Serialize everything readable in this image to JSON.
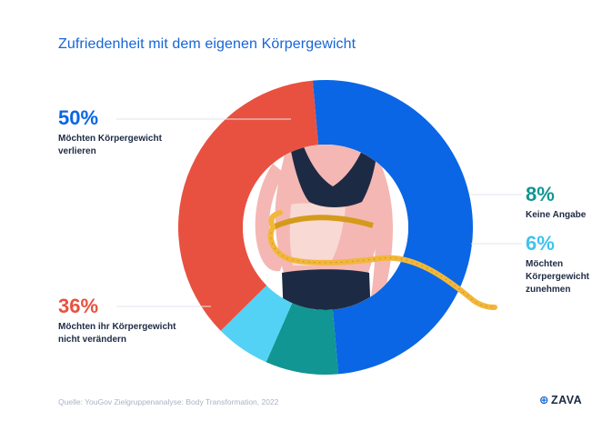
{
  "title": "Zufriedenheit mit dem eigenen Körpergewicht",
  "source": "Quelle: YouGov Zielgruppenanalyse: Body Transformation, 2022",
  "logo": {
    "mark": "⊕",
    "text": "ZAVA"
  },
  "colors": {
    "verlieren": "#0a66e4",
    "keine_angabe": "#119693",
    "zunehmen": "#53d2f5",
    "nicht_veraendern": "#e85140",
    "title": "#1565d8"
  },
  "chart_data": {
    "type": "pie",
    "title": "Zufriedenheit mit dem eigenen Körpergewicht",
    "slices": [
      {
        "pct_label": "50%",
        "label_lines": [
          "Möchten Körpergewicht",
          "verlieren"
        ],
        "value": 50,
        "color": "#0a66e4"
      },
      {
        "pct_label": "8%",
        "label_lines": [
          "Keine Angabe"
        ],
        "value": 8,
        "color": "#119693"
      },
      {
        "pct_label": "6%",
        "label_lines": [
          "Möchten",
          "Körpergewicht",
          "zunehmen"
        ],
        "value": 6,
        "color": "#53d2f5"
      },
      {
        "pct_label": "36%",
        "label_lines": [
          "Möchten ihr Körpergewicht",
          "nicht verändern"
        ],
        "value": 36,
        "color": "#e85140"
      }
    ]
  }
}
